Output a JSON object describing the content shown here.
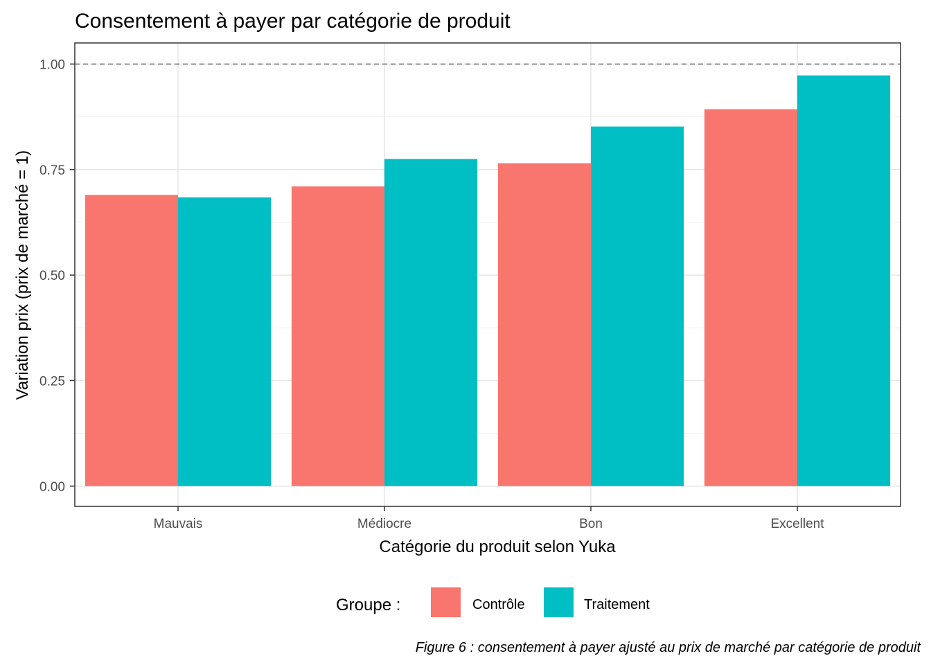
{
  "chart_data": {
    "type": "bar",
    "title": "Consentement à payer par catégorie de produit",
    "xlabel": "Catégorie du produit selon Yuka",
    "ylabel": "Variation prix (prix de marché = 1)",
    "categories": [
      "Mauvais",
      "Médiocre",
      "Bon",
      "Excellent"
    ],
    "series": [
      {
        "name": "Contrôle",
        "color": "#F8766D",
        "values": [
          0.69,
          0.71,
          0.765,
          0.893
        ]
      },
      {
        "name": "Traitement",
        "color": "#00BFC4",
        "values": [
          0.684,
          0.775,
          0.852,
          0.973
        ]
      }
    ],
    "ylim": [
      -0.048,
      1.05
    ],
    "yticks": [
      0.0,
      0.25,
      0.5,
      0.75,
      1.0
    ],
    "ytick_labels": [
      "0.00",
      "0.25",
      "0.50",
      "0.75",
      "1.00"
    ],
    "reference_line": {
      "y": 1.0,
      "style": "dashed"
    },
    "grid": true,
    "legend": {
      "title": "Groupe :",
      "position": "bottom",
      "entries": [
        "Contrôle",
        "Traitement"
      ]
    },
    "caption": "Figure 6 : consentement à payer ajusté au prix de marché par catégorie de produit"
  }
}
